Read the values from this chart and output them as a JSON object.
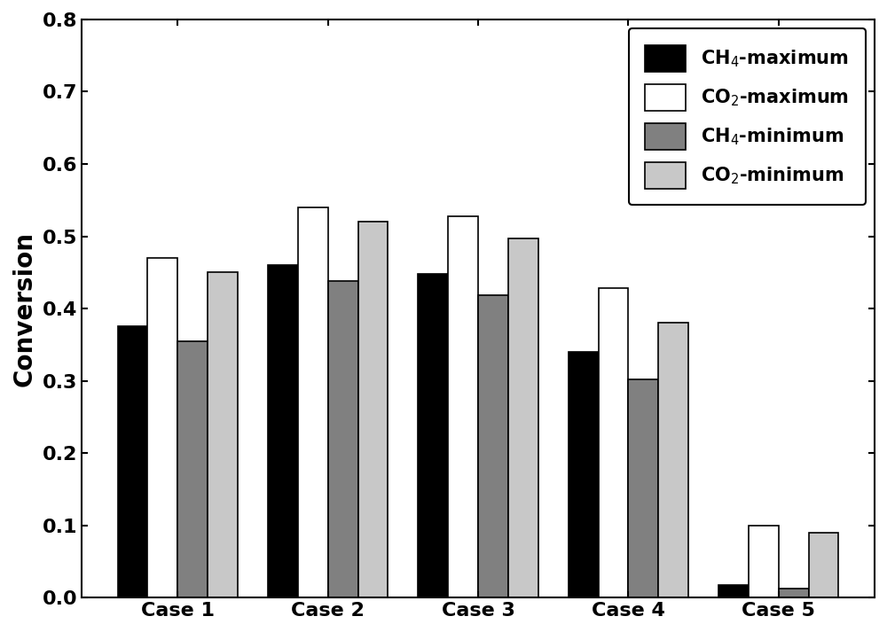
{
  "categories": [
    "Case 1",
    "Case 2",
    "Case 3",
    "Case 4",
    "Case 5"
  ],
  "series": {
    "CH4_max": [
      0.375,
      0.46,
      0.448,
      0.34,
      0.018
    ],
    "CO2_max": [
      0.47,
      0.54,
      0.528,
      0.428,
      0.1
    ],
    "CH4_min": [
      0.355,
      0.438,
      0.418,
      0.302,
      0.013
    ],
    "CO2_min": [
      0.45,
      0.52,
      0.497,
      0.38,
      0.09
    ]
  },
  "colors": {
    "CH4_max": "#000000",
    "CO2_max": "#ffffff",
    "CH4_min": "#808080",
    "CO2_min": "#c8c8c8"
  },
  "legend_labels": {
    "CH4_max": "CH$_4$-maximum",
    "CO2_max": "CO$_2$-maximum",
    "CH4_min": "CH$_4$-minimum",
    "CO2_min": "CO$_2$-minimum"
  },
  "ylabel": "Conversion",
  "ylim": [
    0.0,
    0.8
  ],
  "yticks": [
    0.0,
    0.1,
    0.2,
    0.3,
    0.4,
    0.5,
    0.6,
    0.7,
    0.8
  ],
  "bar_edge_color": "#000000",
  "bar_linewidth": 1.2,
  "background_color": "#ffffff",
  "figsize": [
    10.0,
    7.13
  ]
}
